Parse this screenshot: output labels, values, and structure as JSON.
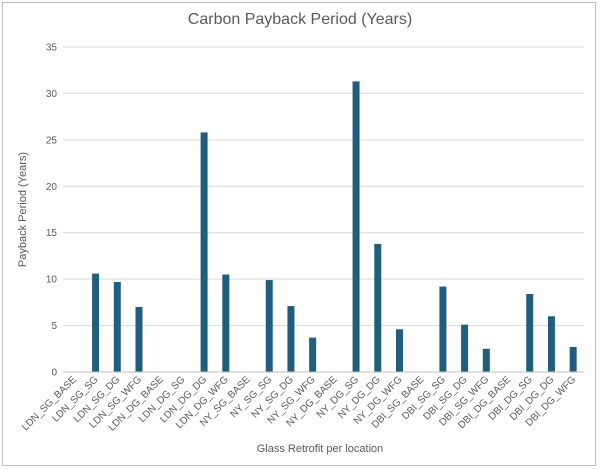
{
  "chart_data": {
    "type": "bar",
    "title": "Carbon Payback Period (Years)",
    "xlabel": "Glass Retrofit per location",
    "ylabel": "Payback Period (Years)",
    "ylim": [
      0,
      35
    ],
    "yticks": [
      0,
      5,
      10,
      15,
      20,
      25,
      30,
      35
    ],
    "grid": true,
    "legend": "none",
    "bar_color": "#1f5e7e",
    "categories": [
      "LDN_SG_BASE",
      "LDN_SG_SG",
      "LDN_SG_DG",
      "LDN_SG_WFG",
      "LDN_DG_BASE",
      "LDN_DG_SG",
      "LDN_DG_DG",
      "LDN_DG_WFG",
      "NY_SG_BASE",
      "NY_SG_SG",
      "NY_SG_DG",
      "NY_SG_WFG",
      "NY_DG_BASE",
      "NY_DG_SG",
      "NY_DG_DG",
      "NY_DG_WFG",
      "DBI_SG_BASE",
      "DBI_SG_SG",
      "DBI_SG_DG",
      "DBI_SG_WFG",
      "DBI_DG_BASE",
      "DBI_DG_SG",
      "DBI_DG_DG",
      "DBI_DG_WFG"
    ],
    "values": [
      0,
      10.6,
      9.7,
      7.0,
      0,
      0,
      25.8,
      10.5,
      0,
      9.9,
      7.1,
      3.7,
      0,
      31.3,
      13.8,
      4.6,
      0,
      9.2,
      5.1,
      2.5,
      0,
      8.4,
      6.0,
      2.7
    ]
  }
}
